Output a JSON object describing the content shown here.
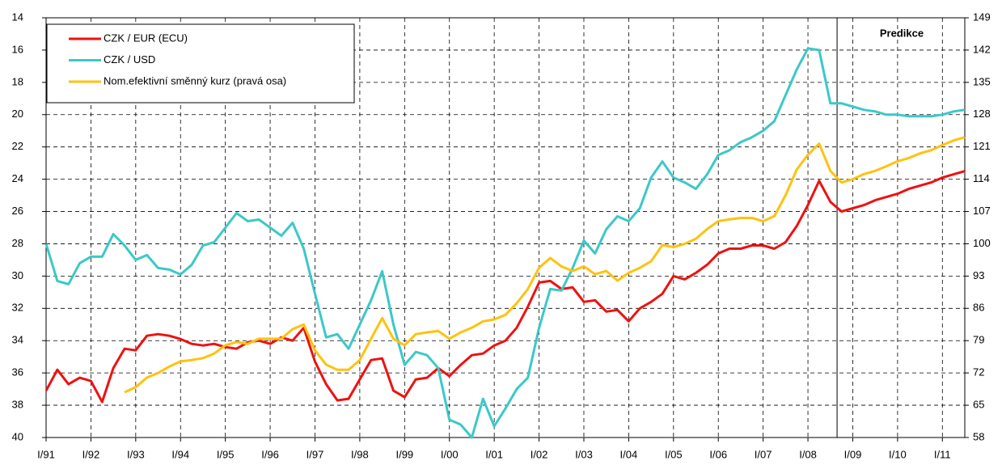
{
  "chart_data": {
    "type": "line",
    "categories": [
      "I/91",
      null,
      null,
      null,
      "I/92",
      null,
      null,
      null,
      "I/93",
      null,
      null,
      null,
      "I/94",
      null,
      null,
      null,
      "I/95",
      null,
      null,
      null,
      "I/96",
      null,
      null,
      null,
      "I/97",
      null,
      null,
      null,
      "I/98",
      null,
      null,
      null,
      "I/99",
      null,
      null,
      null,
      "I/00",
      null,
      null,
      null,
      "I/01",
      null,
      null,
      null,
      "I/02",
      null,
      null,
      null,
      "I/03",
      null,
      null,
      null,
      "I/04",
      null,
      null,
      null,
      "I/05",
      null,
      null,
      null,
      "I/06",
      null,
      null,
      null,
      "I/07",
      null,
      null,
      null,
      "I/08",
      null,
      null,
      null,
      "I/09",
      null,
      null,
      null,
      "I/10",
      null,
      null,
      null,
      "I/11",
      null,
      null
    ],
    "series": [
      {
        "name": "CZK / EUR (ECU)",
        "color": "#ee1111",
        "axis": "y",
        "values": [
          37.1,
          35.8,
          36.7,
          36.3,
          36.5,
          37.8,
          35.7,
          34.5,
          34.6,
          33.7,
          33.6,
          33.7,
          33.9,
          34.2,
          34.3,
          34.2,
          34.4,
          34.5,
          34.1,
          34.0,
          34.2,
          33.8,
          34.0,
          33.2,
          35.3,
          36.7,
          37.7,
          37.6,
          36.4,
          35.2,
          35.1,
          37.1,
          37.5,
          36.4,
          36.3,
          35.7,
          36.2,
          35.5,
          34.9,
          34.8,
          34.3,
          34.0,
          33.2,
          31.9,
          30.4,
          30.3,
          30.8,
          30.7,
          31.6,
          31.5,
          32.2,
          32.1,
          32.8,
          32.0,
          31.6,
          31.1,
          30.0,
          30.2,
          29.8,
          29.3,
          28.6,
          28.3,
          28.3,
          28.1,
          28.1,
          28.3,
          27.9,
          26.9,
          25.6,
          24.1,
          25.4,
          26.0,
          25.8,
          25.6,
          25.3,
          25.1,
          24.9,
          24.6,
          24.4,
          24.2,
          23.9,
          23.7,
          23.5
        ]
      },
      {
        "name": "CZK / USD",
        "color": "#3cc8c8",
        "axis": "y",
        "values": [
          28.0,
          30.3,
          30.5,
          29.2,
          28.8,
          28.8,
          27.4,
          28.1,
          29.0,
          28.7,
          29.5,
          29.6,
          29.9,
          29.3,
          28.1,
          27.9,
          27.0,
          26.1,
          26.6,
          26.5,
          27.0,
          27.5,
          26.7,
          28.3,
          31.1,
          33.8,
          33.6,
          34.5,
          33.0,
          31.5,
          29.7,
          33.0,
          35.5,
          34.7,
          34.9,
          35.7,
          38.9,
          39.2,
          40.0,
          37.6,
          39.3,
          38.2,
          37.0,
          36.3,
          33.2,
          30.8,
          30.9,
          29.5,
          27.8,
          28.6,
          27.1,
          26.3,
          26.6,
          25.8,
          23.9,
          22.9,
          23.9,
          24.2,
          24.6,
          23.7,
          22.5,
          22.2,
          21.7,
          21.4,
          21.0,
          20.4,
          18.8,
          17.2,
          15.9,
          16.0,
          19.3,
          19.3,
          19.5,
          19.7,
          19.8,
          20.0,
          20.0,
          20.1,
          20.1,
          20.1,
          20.0,
          19.8,
          19.7
        ]
      },
      {
        "name": "Nom.efektivní směnný kurz (pravá osa)",
        "color": "#ffc20e",
        "axis": "y2",
        "values": [
          null,
          null,
          null,
          null,
          null,
          null,
          null,
          67.8,
          68.9,
          71.0,
          72.0,
          73.4,
          74.5,
          74.8,
          75.2,
          76.2,
          78.0,
          78.7,
          78.3,
          79.4,
          79.4,
          79.4,
          81.5,
          82.5,
          76.9,
          73.8,
          72.7,
          72.7,
          74.8,
          79.4,
          83.9,
          79.4,
          78.0,
          80.4,
          80.8,
          81.1,
          79.4,
          80.8,
          81.8,
          83.2,
          83.6,
          84.6,
          87.1,
          90.2,
          94.8,
          96.9,
          95.1,
          94.1,
          95.1,
          93.4,
          94.1,
          92.0,
          93.7,
          94.8,
          96.2,
          99.7,
          99.3,
          100.0,
          101.1,
          103.2,
          104.9,
          105.3,
          105.6,
          105.6,
          104.9,
          106.0,
          110.5,
          116.1,
          119.3,
          121.7,
          115.8,
          113.3,
          114.0,
          115.1,
          115.8,
          116.8,
          117.9,
          118.6,
          119.6,
          120.3,
          121.4,
          122.4,
          123.1
        ]
      }
    ],
    "ylim": [
      14,
      40
    ],
    "y_inverted": true,
    "yticks": [
      14,
      16,
      18,
      20,
      22,
      24,
      26,
      28,
      30,
      32,
      34,
      36,
      38,
      40
    ],
    "y2lim": [
      58,
      149
    ],
    "y2ticks": [
      58,
      65,
      72,
      79,
      86,
      93,
      100,
      107,
      114,
      121,
      128,
      135,
      142,
      149
    ],
    "grid": true,
    "legend": "upper left",
    "annotation": "Predikce"
  }
}
